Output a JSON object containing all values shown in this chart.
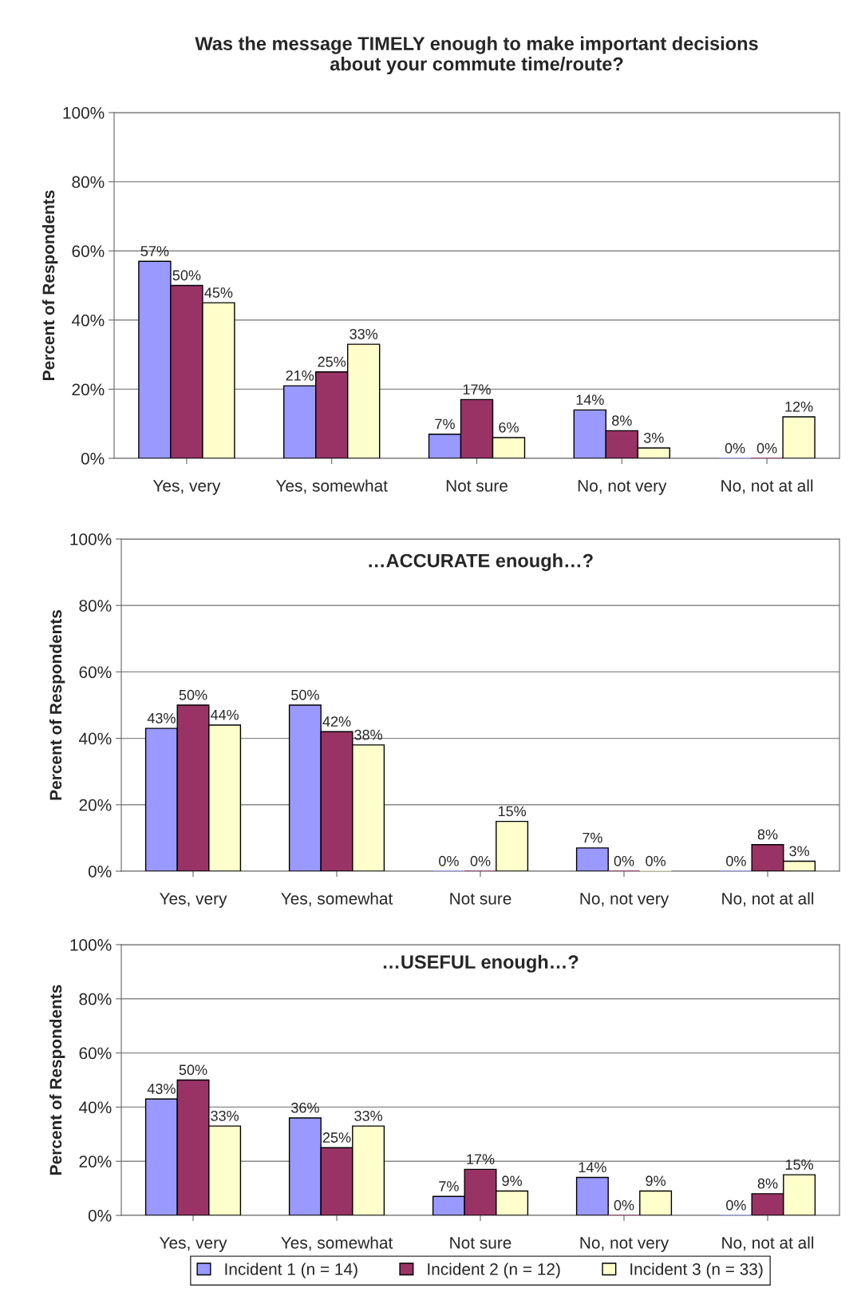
{
  "chart_data": [
    {
      "type": "bar",
      "title": "Was the message TIMELY enough to make important decisions\nabout your commute time/route?",
      "ylabel": "Percent of Respondents",
      "categories": [
        "Yes, very",
        "Yes, somewhat",
        "Not sure",
        "No, not very",
        "No, not at all"
      ],
      "series": [
        {
          "color": "#9999ff",
          "values": [
            57,
            21,
            7,
            14,
            0
          ],
          "value_labels": [
            "57%",
            "21%",
            "7%",
            "14%",
            "0%"
          ]
        },
        {
          "color": "#993366",
          "values": [
            50,
            25,
            17,
            8,
            0
          ],
          "value_labels": [
            "50%",
            "25%",
            "17%",
            "8%",
            "0%"
          ]
        },
        {
          "color": "#ffffcc",
          "values": [
            45,
            33,
            6,
            3,
            12
          ],
          "value_labels": [
            "45%",
            "33%",
            "6%",
            "3%",
            "12%"
          ]
        }
      ],
      "ylim": [
        0,
        100
      ],
      "yticks": [
        {
          "value": 0,
          "label": "0%"
        },
        {
          "value": 20,
          "label": "20%"
        },
        {
          "value": 40,
          "label": "40%"
        },
        {
          "value": 60,
          "label": "60%"
        },
        {
          "value": 80,
          "label": "80%"
        },
        {
          "value": 100,
          "label": "100%"
        }
      ],
      "grid": "y"
    },
    {
      "type": "bar",
      "title": "…ACCURATE enough…?",
      "ylabel": "Percent of Respondents",
      "categories": [
        "Yes, very",
        "Yes, somewhat",
        "Not sure",
        "No, not very",
        "No, not at all"
      ],
      "series": [
        {
          "color": "#9999ff",
          "values": [
            43,
            50,
            0,
            7,
            0
          ],
          "value_labels": [
            "43%",
            "50%",
            "0%",
            "7%",
            "0%"
          ]
        },
        {
          "color": "#993366",
          "values": [
            50,
            42,
            0,
            0,
            8
          ],
          "value_labels": [
            "50%",
            "42%",
            "0%",
            "0%",
            "8%"
          ]
        },
        {
          "color": "#ffffcc",
          "values": [
            44,
            38,
            15,
            0,
            3
          ],
          "value_labels": [
            "44%",
            "38%",
            "15%",
            "0%",
            "3%"
          ]
        }
      ],
      "ylim": [
        0,
        100
      ],
      "yticks": [
        {
          "value": 0,
          "label": "0%"
        },
        {
          "value": 20,
          "label": "20%"
        },
        {
          "value": 40,
          "label": "40%"
        },
        {
          "value": 60,
          "label": "60%"
        },
        {
          "value": 80,
          "label": "80%"
        },
        {
          "value": 100,
          "label": "100%"
        }
      ],
      "grid": "y"
    },
    {
      "type": "bar",
      "title": "…USEFUL enough…?",
      "ylabel": "Percent of Respondents",
      "categories": [
        "Yes, very",
        "Yes, somewhat",
        "Not sure",
        "No, not very",
        "No, not at all"
      ],
      "series": [
        {
          "name": "Incident 1 (n = 14)",
          "color": "#9999ff",
          "values": [
            43,
            36,
            7,
            14,
            0
          ],
          "value_labels": [
            "43%",
            "36%",
            "7%",
            "14%",
            "0%"
          ]
        },
        {
          "name": "Incident 2 (n = 12)",
          "color": "#993366",
          "values": [
            50,
            25,
            17,
            0,
            8
          ],
          "value_labels": [
            "50%",
            "25%",
            "17%",
            "0%",
            "8%"
          ]
        },
        {
          "name": "Incident 3 (n = 33)",
          "color": "#ffffcc",
          "values": [
            33,
            33,
            9,
            9,
            15
          ],
          "value_labels": [
            "33%",
            "33%",
            "9%",
            "9%",
            "15%"
          ]
        }
      ],
      "ylim": [
        0,
        100
      ],
      "yticks": [
        {
          "value": 0,
          "label": "0%"
        },
        {
          "value": 20,
          "label": "20%"
        },
        {
          "value": 40,
          "label": "40%"
        },
        {
          "value": 60,
          "label": "60%"
        },
        {
          "value": 80,
          "label": "80%"
        },
        {
          "value": 100,
          "label": "100%"
        }
      ],
      "grid": "y",
      "legend": "bottom"
    }
  ]
}
